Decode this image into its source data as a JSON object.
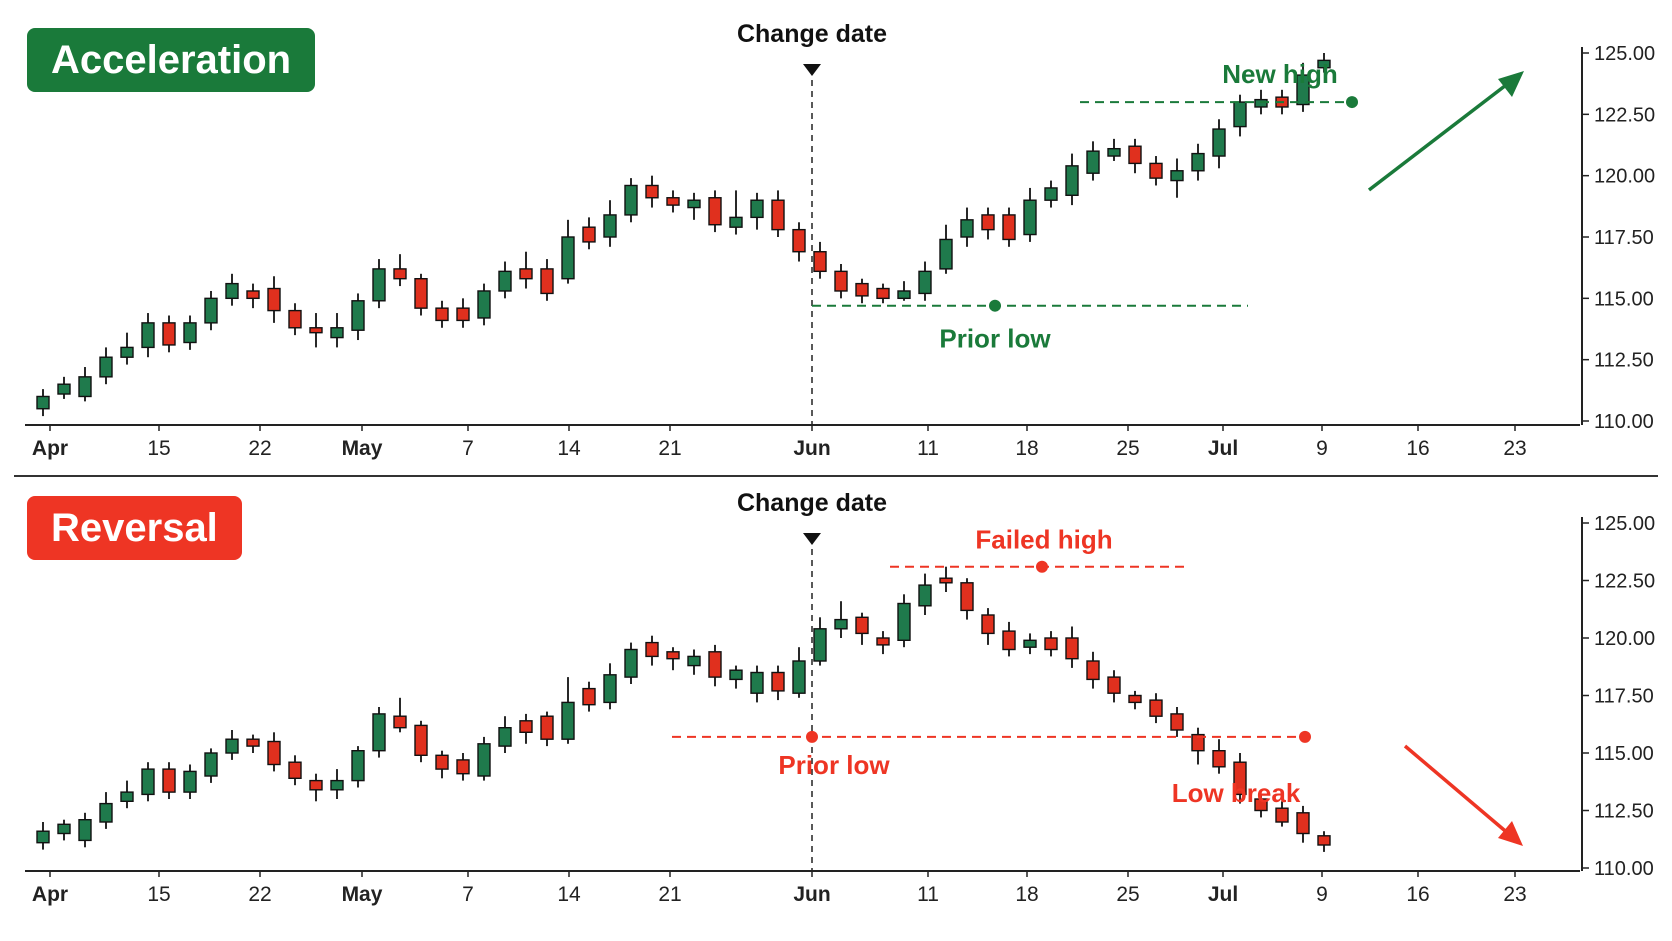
{
  "chart_data": [
    {
      "type": "candlestick",
      "title": "Acceleration",
      "title_color": "#1a7a3a",
      "y_ticks": [
        "125.00",
        "122.50",
        "120.00",
        "117.50",
        "115.00",
        "112.50",
        "110.00"
      ],
      "ylim": [
        110,
        125
      ],
      "x_tick_labels": [
        "Apr",
        "15",
        "22",
        "May",
        "7",
        "14",
        "21",
        "Jun",
        "11",
        "18",
        "25",
        "Jul",
        "9",
        "16",
        "23"
      ],
      "x_tick_bold": [
        "Apr",
        "May",
        "Jun",
        "Jul"
      ],
      "grid": false,
      "up_color": "#1f7a4c",
      "down_color": "#e0301e",
      "change_date_label": "Change date",
      "candles": [
        [
          110.5,
          111.0,
          110.2,
          111.3
        ],
        [
          111.1,
          111.5,
          110.9,
          111.8
        ],
        [
          111.0,
          111.8,
          110.8,
          112.2
        ],
        [
          111.8,
          112.6,
          111.5,
          113.0
        ],
        [
          112.6,
          113.0,
          112.3,
          113.6
        ],
        [
          113.0,
          114.0,
          112.6,
          114.4
        ],
        [
          114.0,
          113.1,
          112.8,
          114.3
        ],
        [
          113.2,
          114.0,
          112.9,
          114.3
        ],
        [
          114.0,
          115.0,
          113.7,
          115.3
        ],
        [
          115.0,
          115.6,
          114.7,
          116.0
        ],
        [
          115.3,
          115.0,
          114.6,
          115.6
        ],
        [
          115.4,
          114.5,
          114.0,
          115.9
        ],
        [
          114.5,
          113.8,
          113.5,
          114.8
        ],
        [
          113.8,
          113.6,
          113.0,
          114.4
        ],
        [
          113.4,
          113.8,
          113.0,
          114.4
        ],
        [
          113.7,
          114.9,
          113.3,
          115.2
        ],
        [
          114.9,
          116.2,
          114.6,
          116.6
        ],
        [
          116.2,
          115.8,
          115.5,
          116.8
        ],
        [
          115.8,
          114.6,
          114.3,
          116.0
        ],
        [
          114.6,
          114.1,
          113.8,
          114.9
        ],
        [
          114.6,
          114.1,
          113.8,
          115.0
        ],
        [
          114.2,
          115.3,
          113.9,
          115.6
        ],
        [
          115.3,
          116.1,
          115.0,
          116.5
        ],
        [
          116.2,
          115.8,
          115.4,
          116.9
        ],
        [
          116.2,
          115.2,
          114.9,
          116.6
        ],
        [
          115.8,
          117.5,
          115.6,
          118.2
        ],
        [
          117.9,
          117.3,
          117.0,
          118.3
        ],
        [
          117.5,
          118.4,
          117.1,
          119.0
        ],
        [
          118.4,
          119.6,
          118.1,
          119.9
        ],
        [
          119.6,
          119.1,
          118.7,
          120.0
        ],
        [
          119.1,
          118.8,
          118.5,
          119.4
        ],
        [
          118.7,
          119.0,
          118.2,
          119.3
        ],
        [
          119.1,
          118.0,
          117.7,
          119.4
        ],
        [
          117.9,
          118.3,
          117.6,
          119.4
        ],
        [
          118.3,
          119.0,
          117.8,
          119.3
        ],
        [
          119.0,
          117.8,
          117.5,
          119.4
        ],
        [
          117.8,
          116.9,
          116.5,
          118.1
        ],
        [
          116.9,
          116.1,
          115.8,
          117.3
        ],
        [
          116.1,
          115.3,
          115.0,
          116.4
        ],
        [
          115.6,
          115.1,
          114.8,
          115.8
        ],
        [
          115.4,
          115.0,
          114.8,
          115.6
        ],
        [
          115.0,
          115.3,
          114.9,
          115.7
        ],
        [
          115.2,
          116.1,
          114.9,
          116.5
        ],
        [
          116.2,
          117.4,
          116.0,
          118.0
        ],
        [
          117.5,
          118.2,
          117.1,
          118.7
        ],
        [
          118.4,
          117.8,
          117.4,
          118.7
        ],
        [
          118.4,
          117.4,
          117.1,
          118.7
        ],
        [
          117.6,
          119.0,
          117.3,
          119.5
        ],
        [
          119.0,
          119.5,
          118.7,
          119.8
        ],
        [
          119.2,
          120.4,
          118.8,
          120.9
        ],
        [
          120.1,
          121.0,
          119.8,
          121.4
        ],
        [
          120.8,
          121.1,
          120.6,
          121.5
        ],
        [
          121.2,
          120.5,
          120.1,
          121.5
        ],
        [
          120.5,
          119.9,
          119.6,
          120.8
        ],
        [
          119.8,
          120.2,
          119.1,
          120.7
        ],
        [
          120.2,
          120.9,
          119.8,
          121.3
        ],
        [
          120.8,
          121.9,
          120.3,
          122.3
        ],
        [
          122.0,
          123.0,
          121.6,
          123.3
        ],
        [
          122.8,
          123.1,
          122.5,
          123.5
        ],
        [
          123.2,
          122.8,
          122.5,
          123.5
        ],
        [
          122.9,
          124.1,
          122.6,
          124.6
        ],
        [
          124.4,
          124.7,
          124.2,
          125.0
        ]
      ],
      "annotations": {
        "high_label": "New high",
        "low_label": "Prior low",
        "high_color": "#1a7a3a",
        "low_color": "#1a7a3a",
        "high_level": 123.0,
        "low_level": 114.7,
        "arrow": "up"
      }
    },
    {
      "type": "candlestick",
      "title": "Reversal",
      "title_color": "#ee3524",
      "y_ticks": [
        "125.00",
        "122.50",
        "120.00",
        "117.50",
        "115.00",
        "112.50",
        "110.00"
      ],
      "ylim": [
        110,
        125
      ],
      "x_tick_labels": [
        "Apr",
        "15",
        "22",
        "May",
        "7",
        "14",
        "21",
        "Jun",
        "11",
        "18",
        "25",
        "Jul",
        "9",
        "16",
        "23"
      ],
      "x_tick_bold": [
        "Apr",
        "May",
        "Jun",
        "Jul"
      ],
      "grid": false,
      "up_color": "#1f7a4c",
      "down_color": "#e0301e",
      "change_date_label": "Change date",
      "candles": [
        [
          111.1,
          111.6,
          110.8,
          112.0
        ],
        [
          111.5,
          111.9,
          111.2,
          112.1
        ],
        [
          111.2,
          112.1,
          110.9,
          112.4
        ],
        [
          112.0,
          112.8,
          111.7,
          113.3
        ],
        [
          112.9,
          113.3,
          112.6,
          113.8
        ],
        [
          113.2,
          114.3,
          112.9,
          114.6
        ],
        [
          114.3,
          113.3,
          113.0,
          114.6
        ],
        [
          113.3,
          114.2,
          113.0,
          114.5
        ],
        [
          114.0,
          115.0,
          113.7,
          115.2
        ],
        [
          115.0,
          115.6,
          114.7,
          116.0
        ],
        [
          115.6,
          115.3,
          115.0,
          115.8
        ],
        [
          115.5,
          114.5,
          114.2,
          115.9
        ],
        [
          114.6,
          113.9,
          113.6,
          114.9
        ],
        [
          113.8,
          113.4,
          112.9,
          114.1
        ],
        [
          113.4,
          113.8,
          113.0,
          114.3
        ],
        [
          113.8,
          115.1,
          113.5,
          115.3
        ],
        [
          115.1,
          116.7,
          114.8,
          117.0
        ],
        [
          116.6,
          116.1,
          115.9,
          117.4
        ],
        [
          116.2,
          114.9,
          114.6,
          116.4
        ],
        [
          114.9,
          114.3,
          113.9,
          115.1
        ],
        [
          114.7,
          114.1,
          113.8,
          115.0
        ],
        [
          114.0,
          115.4,
          113.8,
          115.7
        ],
        [
          115.3,
          116.1,
          115.0,
          116.6
        ],
        [
          116.4,
          115.9,
          115.4,
          116.7
        ],
        [
          116.6,
          115.6,
          115.3,
          116.8
        ],
        [
          115.6,
          117.2,
          115.4,
          118.3
        ],
        [
          117.8,
          117.1,
          116.8,
          118.1
        ],
        [
          117.2,
          118.4,
          116.9,
          118.9
        ],
        [
          118.3,
          119.5,
          118.0,
          119.8
        ],
        [
          119.8,
          119.2,
          118.8,
          120.1
        ],
        [
          119.4,
          119.1,
          118.6,
          119.6
        ],
        [
          118.8,
          119.2,
          118.4,
          119.5
        ],
        [
          119.4,
          118.3,
          117.9,
          119.7
        ],
        [
          118.2,
          118.6,
          117.8,
          118.8
        ],
        [
          117.6,
          118.5,
          117.2,
          118.8
        ],
        [
          118.5,
          117.7,
          117.3,
          118.8
        ],
        [
          117.6,
          119.0,
          117.4,
          119.6
        ],
        [
          119.0,
          120.4,
          118.8,
          120.9
        ],
        [
          120.4,
          120.8,
          120.0,
          121.6
        ],
        [
          120.9,
          120.2,
          119.7,
          121.1
        ],
        [
          120.0,
          119.7,
          119.3,
          120.3
        ],
        [
          119.9,
          121.5,
          119.6,
          121.9
        ],
        [
          121.4,
          122.3,
          121.0,
          122.8
        ],
        [
          122.6,
          122.4,
          122.0,
          123.1
        ],
        [
          122.4,
          121.2,
          120.8,
          122.6
        ],
        [
          121.0,
          120.2,
          119.7,
          121.3
        ],
        [
          120.3,
          119.5,
          119.2,
          120.7
        ],
        [
          119.6,
          119.9,
          119.3,
          120.2
        ],
        [
          120.0,
          119.5,
          119.2,
          120.3
        ],
        [
          120.0,
          119.1,
          118.7,
          120.5
        ],
        [
          119.0,
          118.2,
          117.8,
          119.4
        ],
        [
          118.3,
          117.6,
          117.2,
          118.6
        ],
        [
          117.5,
          117.2,
          116.9,
          117.7
        ],
        [
          117.3,
          116.6,
          116.3,
          117.6
        ],
        [
          116.7,
          116.0,
          115.7,
          117.0
        ],
        [
          115.8,
          115.1,
          114.5,
          116.1
        ],
        [
          115.1,
          114.4,
          114.1,
          115.6
        ],
        [
          114.6,
          113.2,
          112.8,
          115.0
        ],
        [
          113.0,
          112.5,
          112.2,
          113.2
        ],
        [
          112.6,
          112.0,
          111.8,
          112.9
        ],
        [
          112.4,
          111.5,
          111.1,
          112.7
        ],
        [
          111.4,
          111.0,
          110.7,
          111.6
        ]
      ],
      "annotations": {
        "high_label": "Failed high",
        "low_label": "Prior low",
        "break_label": "Low break",
        "high_color": "#ee3524",
        "low_color": "#ee3524",
        "high_level": 123.1,
        "low_level": 115.7,
        "arrow": "down"
      }
    }
  ]
}
